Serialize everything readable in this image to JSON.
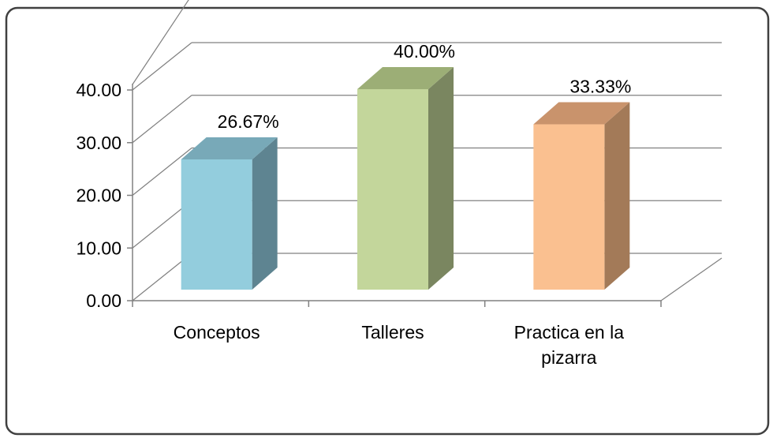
{
  "chart_data": {
    "type": "bar",
    "style": "3d-column",
    "categories": [
      "Conceptos",
      "Talleres",
      "Practica en la pizarra"
    ],
    "values": [
      26.67,
      40.0,
      33.33
    ],
    "data_labels": [
      "26.67%",
      "40.00%",
      "33.33%"
    ],
    "y_ticks": [
      "0.00",
      "10.00",
      "20.00",
      "30.00",
      "40.00"
    ],
    "ylim": [
      0,
      40
    ],
    "grid": true,
    "legend": "none",
    "colors": {
      "Conceptos": {
        "front": "#93CDDD",
        "side": "#5E8491",
        "top": "#78A9B8"
      },
      "Talleres": {
        "front": "#C3D69B",
        "side": "#7A8660",
        "top": "#9CAE76"
      },
      "Practica en la pizarra": {
        "front": "#FAC090",
        "side": "#A37A58",
        "top": "#C9936C"
      }
    },
    "border_color": "#404040",
    "grid_color": "#808080"
  }
}
